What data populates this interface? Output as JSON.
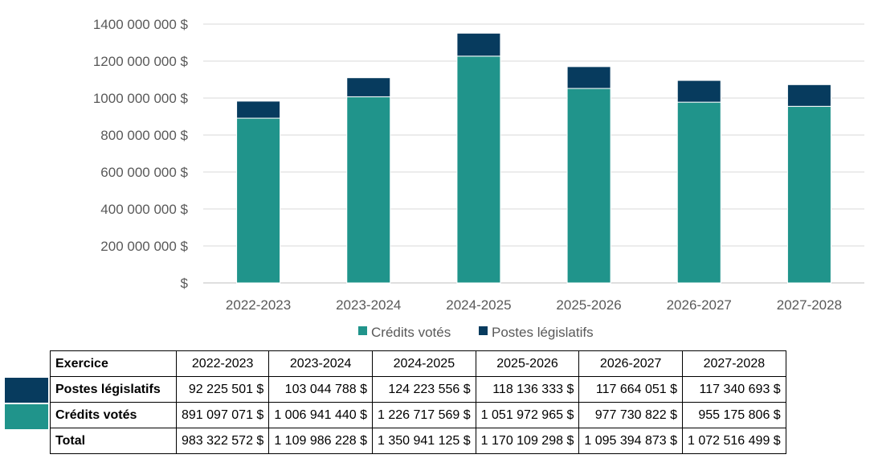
{
  "chart_data": {
    "type": "bar",
    "stacked": true,
    "categories": [
      "2022-2023",
      "2023-2024",
      "2024-2025",
      "2025-2026",
      "2026-2027",
      "2027-2028"
    ],
    "series": [
      {
        "name": "Crédits votés",
        "color": "#20948B",
        "values": [
          891097071,
          1006941440,
          1226717569,
          1051972965,
          977730822,
          955175806
        ]
      },
      {
        "name": "Postes législatifs",
        "color": "#073B5E",
        "values": [
          92225501,
          103044788,
          124223556,
          118136333,
          117664051,
          117340693
        ]
      }
    ],
    "ylim": [
      0,
      1400000000
    ],
    "yticks": [
      0,
      200000000,
      400000000,
      600000000,
      800000000,
      1000000000,
      1200000000,
      1400000000
    ],
    "ytick_labels": [
      "$",
      "200 000 000 $",
      "400 000 000 $",
      "600 000 000 $",
      "800 000 000 $",
      "1000 000 000 $",
      "1200 000 000 $",
      "1400 000 000 $"
    ],
    "grid": true,
    "legend_position": "bottom"
  },
  "table": {
    "header_label": "Exercice",
    "years": [
      "2022-2023",
      "2023-2024",
      "2024-2025",
      "2025-2026",
      "2026-2027",
      "2027-2028"
    ],
    "rows": [
      {
        "label": "Postes législatifs",
        "values": [
          "92 225 501 $",
          "103 044 788 $",
          "124 223 556 $",
          "118 136 333 $",
          "117 664 051 $",
          "117 340 693 $"
        ]
      },
      {
        "label": "Crédits votés",
        "values": [
          "891 097 071 $",
          "1 006 941 440 $",
          "1 226 717 569 $",
          "1 051 972 965 $",
          "977 730 822 $",
          "955 175 806 $"
        ]
      },
      {
        "label": "Total",
        "values": [
          "983 322 572 $",
          "1 109 986 228 $",
          "1 350 941 125 $",
          "1 170 109 298 $",
          "1 095 394 873 $",
          "1 072 516 499 $"
        ]
      }
    ]
  }
}
